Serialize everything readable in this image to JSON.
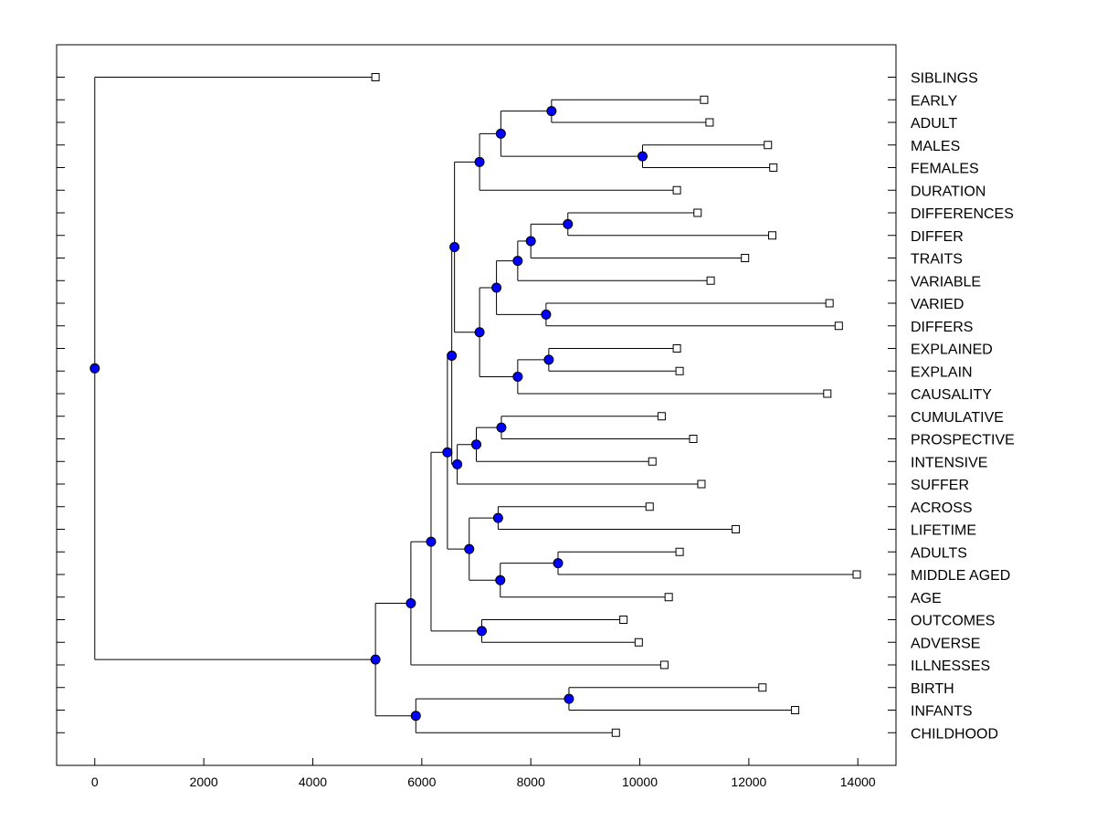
{
  "chart_data": {
    "type": "dendrogram",
    "orientation": "horizontal",
    "title": "",
    "xlabel": "",
    "ylabel": "",
    "xlim": [
      -700,
      14700
    ],
    "xticks": [
      0,
      2000,
      4000,
      6000,
      8000,
      10000,
      12000,
      14000
    ],
    "grid": false,
    "legend": "none",
    "colors": {
      "node_fill": "#0000ff",
      "line": "#000000",
      "leaf_fill": "#ffffff"
    },
    "leaves": [
      {
        "label": "SIBLINGS",
        "value": 5150
      },
      {
        "label": "EARLY",
        "value": 11180
      },
      {
        "label": "ADULT",
        "value": 11280
      },
      {
        "label": "MALES",
        "value": 12350
      },
      {
        "label": "FEMALES",
        "value": 12450
      },
      {
        "label": "DURATION",
        "value": 10680
      },
      {
        "label": "DIFFERENCES",
        "value": 11060
      },
      {
        "label": "DIFFER",
        "value": 12430
      },
      {
        "label": "TRAITS",
        "value": 11930
      },
      {
        "label": "VARIABLE",
        "value": 11300
      },
      {
        "label": "VARIED",
        "value": 13480
      },
      {
        "label": "DIFFERS",
        "value": 13650
      },
      {
        "label": "EXPLAINED",
        "value": 10680
      },
      {
        "label": "EXPLAIN",
        "value": 10730
      },
      {
        "label": "CAUSALITY",
        "value": 13440
      },
      {
        "label": "CUMULATIVE",
        "value": 10400
      },
      {
        "label": "PROSPECTIVE",
        "value": 10980
      },
      {
        "label": "INTENSIVE",
        "value": 10230
      },
      {
        "label": "SUFFER",
        "value": 11130
      },
      {
        "label": "ACROSS",
        "value": 10180
      },
      {
        "label": "LIFETIME",
        "value": 11760
      },
      {
        "label": "ADULTS",
        "value": 10730
      },
      {
        "label": "MIDDLE AGED",
        "value": 13980
      },
      {
        "label": "AGE",
        "value": 10530
      },
      {
        "label": "OUTCOMES",
        "value": 9700
      },
      {
        "label": "ADVERSE",
        "value": 9980
      },
      {
        "label": "ILLNESSES",
        "value": 10450
      },
      {
        "label": "BIRTH",
        "value": 12250
      },
      {
        "label": "INFANTS",
        "value": 12850
      },
      {
        "label": "CHILDHOOD",
        "value": 9560
      }
    ],
    "merges": [
      {
        "id": "m1",
        "value": 8380,
        "children": [
          "EARLY",
          "ADULT"
        ]
      },
      {
        "id": "m2",
        "value": 10050,
        "children": [
          "MALES",
          "FEMALES"
        ]
      },
      {
        "id": "m3",
        "value": 7450,
        "children": [
          "m1",
          "m2"
        ]
      },
      {
        "id": "m4",
        "value": 7060,
        "children": [
          "m3",
          "DURATION"
        ]
      },
      {
        "id": "m5",
        "value": 8680,
        "children": [
          "DIFFERENCES",
          "DIFFER"
        ]
      },
      {
        "id": "m6",
        "value": 8000,
        "children": [
          "m5",
          "TRAITS"
        ]
      },
      {
        "id": "m7",
        "value": 7760,
        "children": [
          "m6",
          "VARIABLE"
        ]
      },
      {
        "id": "m8",
        "value": 8280,
        "children": [
          "VARIED",
          "DIFFERS"
        ]
      },
      {
        "id": "m9",
        "value": 7370,
        "children": [
          "m7",
          "m8"
        ]
      },
      {
        "id": "m10",
        "value": 8330,
        "children": [
          "EXPLAINED",
          "EXPLAIN"
        ]
      },
      {
        "id": "m11",
        "value": 7760,
        "children": [
          "m10",
          "CAUSALITY"
        ]
      },
      {
        "id": "m12",
        "value": 7060,
        "children": [
          "m9",
          "m11"
        ]
      },
      {
        "id": "m13",
        "value": 6600,
        "children": [
          "m4",
          "m12"
        ]
      },
      {
        "id": "m14",
        "value": 7460,
        "children": [
          "CUMULATIVE",
          "PROSPECTIVE"
        ]
      },
      {
        "id": "m15",
        "value": 7000,
        "children": [
          "m14",
          "INTENSIVE"
        ]
      },
      {
        "id": "m16",
        "value": 6650,
        "children": [
          "m15",
          "SUFFER"
        ]
      },
      {
        "id": "m17",
        "value": 6550,
        "children": [
          "m13",
          "m16"
        ]
      },
      {
        "id": "m18",
        "value": 7400,
        "children": [
          "ACROSS",
          "LIFETIME"
        ]
      },
      {
        "id": "m19",
        "value": 8500,
        "children": [
          "ADULTS",
          "MIDDLE AGED"
        ]
      },
      {
        "id": "m20",
        "value": 7440,
        "children": [
          "m19",
          "AGE"
        ]
      },
      {
        "id": "m21",
        "value": 6870,
        "children": [
          "m18",
          "m20"
        ]
      },
      {
        "id": "m22",
        "value": 6470,
        "children": [
          "m17",
          "m21"
        ]
      },
      {
        "id": "m23",
        "value": 7100,
        "children": [
          "OUTCOMES",
          "ADVERSE"
        ]
      },
      {
        "id": "m24",
        "value": 6170,
        "children": [
          "m22",
          "m23"
        ]
      },
      {
        "id": "m25",
        "value": 5800,
        "children": [
          "m24",
          "ILLNESSES"
        ]
      },
      {
        "id": "m26",
        "value": 8700,
        "children": [
          "BIRTH",
          "INFANTS"
        ]
      },
      {
        "id": "m27",
        "value": 5890,
        "children": [
          "m26",
          "CHILDHOOD"
        ]
      },
      {
        "id": "m28",
        "value": 5150,
        "children": [
          "m25",
          "m27"
        ]
      },
      {
        "id": "m29",
        "value": 0,
        "children": [
          "SIBLINGS",
          "m28"
        ]
      }
    ]
  }
}
